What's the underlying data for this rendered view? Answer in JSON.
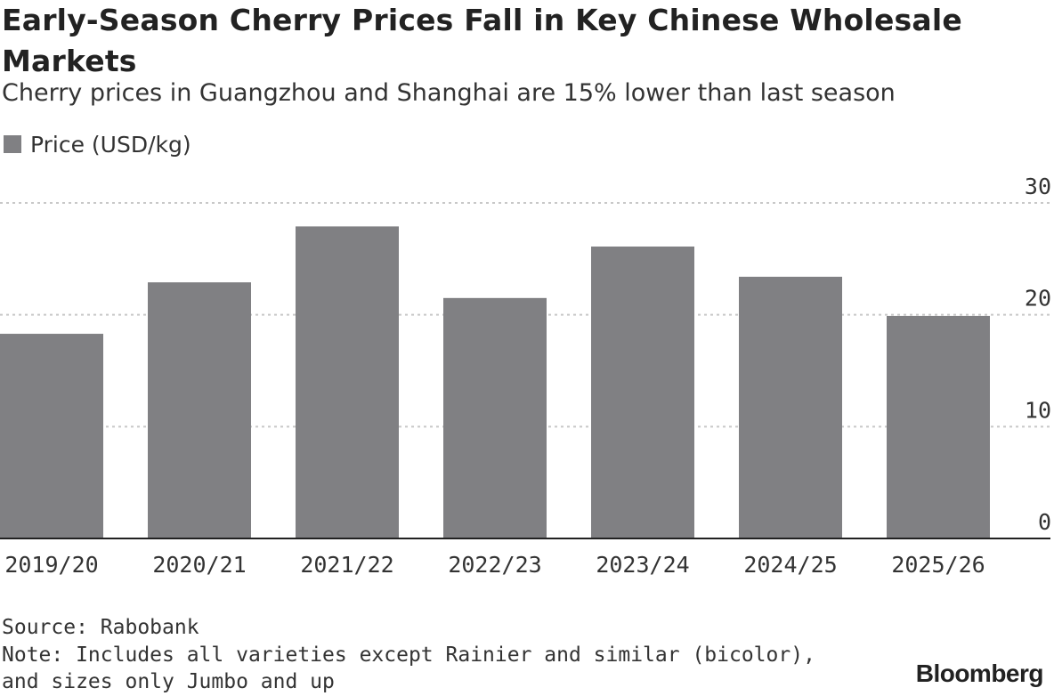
{
  "chart_data": {
    "type": "bar",
    "title": "Early-Season Cherry Prices Fall in Key Chinese Wholesale Markets",
    "subtitle": "Cherry prices in Guangzhou and Shanghai are 15% lower than last season",
    "categories": [
      "2019/20",
      "2020/21",
      "2021/22",
      "2022/23",
      "2023/24",
      "2024/25",
      "2025/26"
    ],
    "series": [
      {
        "name": "Price (USD/kg)",
        "color": "#808083",
        "values": [
          18.3,
          22.9,
          27.9,
          21.5,
          26.1,
          23.4,
          19.9
        ]
      }
    ],
    "ylim": [
      0,
      30
    ],
    "yticks": [
      0,
      10,
      20,
      30
    ],
    "xlabel": "",
    "ylabel": "",
    "grid": true,
    "legend_position": "top-left",
    "y_axis_side": "right"
  },
  "footer": {
    "source": "Source: Rabobank",
    "note": "Note: Includes all varieties except Rainier and similar (bicolor), and sizes only Jumbo and up",
    "brand": "Bloomberg"
  },
  "colors": {
    "bar": "#808083",
    "grid": "#c8c8c8",
    "baseline": "#222222",
    "text": "#333333"
  }
}
